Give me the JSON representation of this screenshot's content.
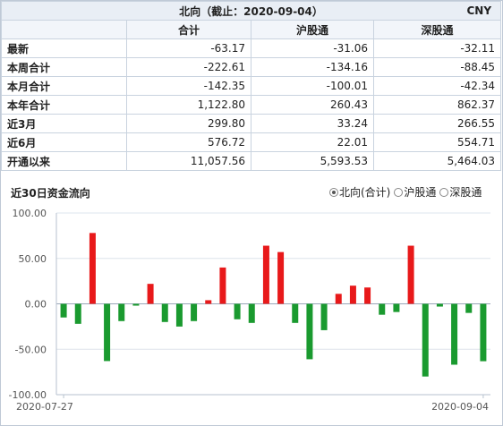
{
  "header": {
    "title": "北向（截止：2020-09-04）",
    "unit": "CNY"
  },
  "table": {
    "columns": [
      "合计",
      "沪股通",
      "深股通"
    ],
    "rows": [
      {
        "label": "最新",
        "values": [
          "-63.17",
          "-31.06",
          "-32.11"
        ]
      },
      {
        "label": "本周合计",
        "values": [
          "-222.61",
          "-134.16",
          "-88.45"
        ]
      },
      {
        "label": "本月合计",
        "values": [
          "-142.35",
          "-100.01",
          "-42.34"
        ]
      },
      {
        "label": "本年合计",
        "values": [
          "1,122.80",
          "260.43",
          "862.37"
        ]
      },
      {
        "label": "近3月",
        "values": [
          "299.80",
          "33.24",
          "266.55"
        ]
      },
      {
        "label": "近6月",
        "values": [
          "576.72",
          "22.01",
          "554.71"
        ]
      },
      {
        "label": "开通以来",
        "values": [
          "11,057.56",
          "5,593.53",
          "5,464.03"
        ]
      }
    ]
  },
  "chart_title": "近30日资金流向",
  "legend": [
    {
      "label": "北向(合计)",
      "selected": true
    },
    {
      "label": "沪股通",
      "selected": false
    },
    {
      "label": "深股通",
      "selected": false
    }
  ],
  "chart_data": {
    "type": "bar",
    "ylim": [
      -100,
      100
    ],
    "y_ticks": [
      "100.00",
      "50.00",
      "0.00",
      "-50.00",
      "-100.00"
    ],
    "x_start_label": "2020-07-27",
    "x_end_label": "2020-09-04",
    "grid": true,
    "colors": {
      "positive": "#e8191a",
      "negative": "#1a9a2f"
    },
    "values": [
      -15,
      -22,
      78,
      -63,
      -19,
      -2,
      22,
      -20,
      -25,
      -19,
      4,
      40,
      -17,
      -21,
      64,
      57,
      -21,
      -61,
      -29,
      11,
      20,
      18,
      -12,
      -9,
      64,
      -80,
      -3,
      -67,
      -10,
      -63.17
    ]
  }
}
